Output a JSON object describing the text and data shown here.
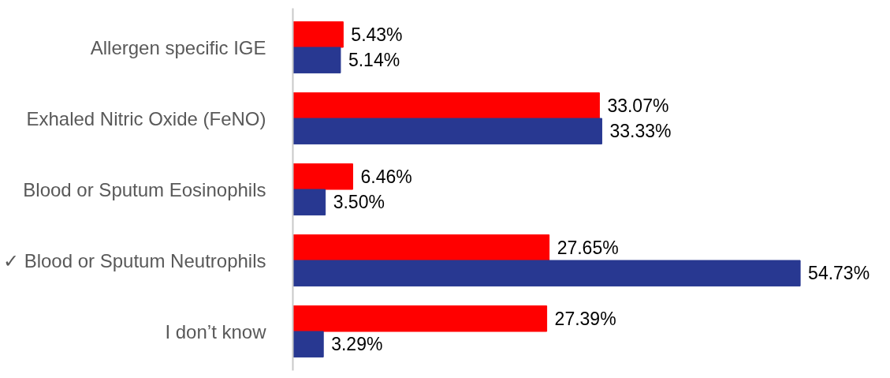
{
  "chart_data": {
    "type": "bar",
    "orientation": "horizontal",
    "categories": [
      "Allergen specific IGE",
      "Exhaled Nitric Oxide (FeNO)",
      "Blood or Sputum Eosinophils",
      "✓ Blood or Sputum Neutrophils",
      "I don’t know"
    ],
    "series": [
      {
        "color": "#ff0000",
        "values": [
          5.43,
          33.07,
          6.46,
          27.65,
          27.39
        ],
        "value_labels": [
          "5.43%",
          "33.07%",
          "6.46%",
          "27.65%",
          "27.39%"
        ]
      },
      {
        "color": "#283891",
        "values": [
          5.14,
          33.33,
          3.5,
          54.73,
          3.29
        ],
        "value_labels": [
          "5.14%",
          "33.33%",
          "3.50%",
          "54.73%",
          "3.29%"
        ]
      }
    ],
    "grid": false
  }
}
